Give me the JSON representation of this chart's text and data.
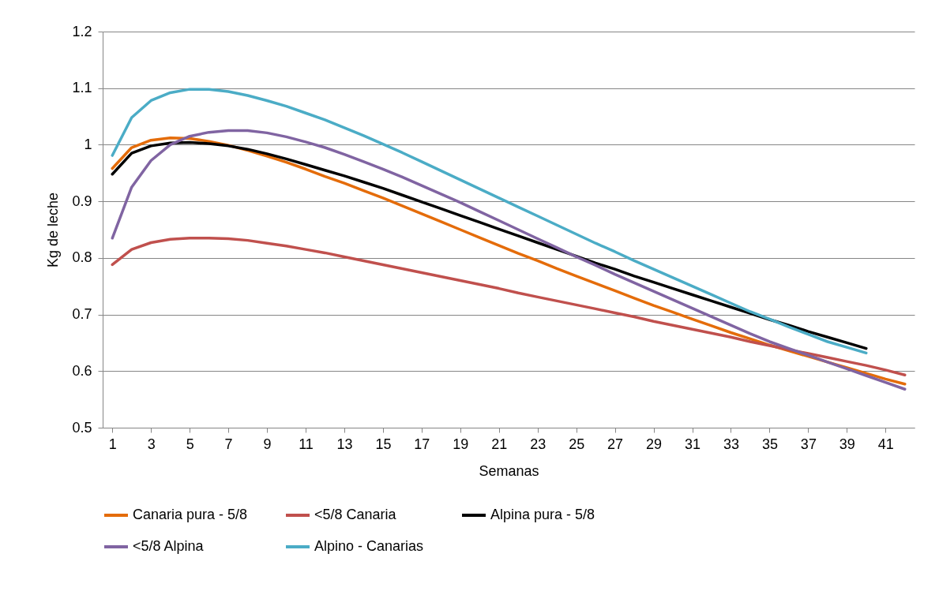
{
  "chart_data": {
    "type": "line",
    "xlabel": "Semanas",
    "ylabel": "Kg de leche",
    "x": [
      1,
      2,
      3,
      4,
      5,
      6,
      7,
      8,
      9,
      10,
      11,
      12,
      13,
      14,
      15,
      16,
      17,
      18,
      19,
      20,
      21,
      22,
      23,
      24,
      25,
      26,
      27,
      28,
      29,
      30,
      31,
      32,
      33,
      34,
      35,
      36,
      37,
      38,
      39,
      40,
      41,
      42
    ],
    "xlim": [
      0.5,
      42.5
    ],
    "xticks": [
      1,
      3,
      5,
      7,
      9,
      11,
      13,
      15,
      17,
      19,
      21,
      23,
      25,
      27,
      29,
      31,
      33,
      35,
      37,
      39,
      41
    ],
    "ylim": [
      0.5,
      1.2
    ],
    "yticks": [
      0.5,
      0.6,
      0.7,
      0.8,
      0.9,
      1,
      1.1,
      1.2
    ],
    "grid": "y",
    "legend": "bottom",
    "marker": "none",
    "line_style": "solid",
    "series": [
      {
        "name": "Canaria pura - 5/8",
        "color": "#e46c0a",
        "values": [
          0.958,
          0.995,
          1.008,
          1.012,
          1.011,
          1.006,
          0.999,
          0.99,
          0.98,
          0.969,
          0.957,
          0.944,
          0.932,
          0.919,
          0.906,
          0.892,
          0.878,
          0.864,
          0.85,
          0.836,
          0.822,
          0.808,
          0.795,
          0.781,
          0.768,
          0.755,
          0.742,
          0.729,
          0.716,
          0.704,
          0.692,
          0.68,
          0.668,
          0.657,
          0.646,
          0.636,
          0.626,
          0.616,
          0.606,
          0.596,
          0.586,
          0.577
        ]
      },
      {
        "name": "<5/8 Canaria",
        "color": "#c0504d",
        "values": [
          0.788,
          0.815,
          0.827,
          0.833,
          0.835,
          0.835,
          0.834,
          0.831,
          0.826,
          0.821,
          0.815,
          0.809,
          0.802,
          0.795,
          0.788,
          0.781,
          0.774,
          0.767,
          0.76,
          0.753,
          0.746,
          0.738,
          0.731,
          0.724,
          0.717,
          0.71,
          0.703,
          0.696,
          0.688,
          0.681,
          0.674,
          0.667,
          0.66,
          0.652,
          0.645,
          0.638,
          0.631,
          0.624,
          0.617,
          0.61,
          0.602,
          0.593
        ]
      },
      {
        "name": "Alpina pura - 5/8",
        "color": "#000000",
        "values": [
          0.948,
          0.985,
          0.998,
          1.003,
          1.004,
          1.002,
          0.998,
          0.992,
          0.984,
          0.975,
          0.965,
          0.955,
          0.945,
          0.934,
          0.923,
          0.911,
          0.899,
          0.887,
          0.875,
          0.863,
          0.851,
          0.839,
          0.827,
          0.815,
          0.803,
          0.791,
          0.78,
          0.768,
          0.757,
          0.746,
          0.735,
          0.724,
          0.713,
          0.702,
          0.691,
          0.681,
          0.67,
          0.66,
          0.65,
          0.64,
          null,
          null
        ]
      },
      {
        "name": "<5/8 Alpina",
        "color": "#8064a2",
        "values": [
          0.835,
          0.925,
          0.972,
          1.0,
          1.015,
          1.022,
          1.025,
          1.025,
          1.021,
          1.014,
          1.005,
          0.995,
          0.983,
          0.97,
          0.957,
          0.943,
          0.928,
          0.913,
          0.898,
          0.882,
          0.866,
          0.85,
          0.834,
          0.818,
          0.802,
          0.787,
          0.771,
          0.756,
          0.741,
          0.726,
          0.711,
          0.696,
          0.681,
          0.666,
          0.652,
          0.64,
          0.628,
          0.616,
          0.604,
          0.592,
          0.58,
          0.568
        ]
      },
      {
        "name": "Alpino - Canarias",
        "color": "#4bacc6",
        "values": [
          0.981,
          1.048,
          1.078,
          1.092,
          1.098,
          1.098,
          1.094,
          1.087,
          1.078,
          1.068,
          1.056,
          1.044,
          1.03,
          1.016,
          1.001,
          0.986,
          0.97,
          0.954,
          0.938,
          0.922,
          0.906,
          0.89,
          0.874,
          0.858,
          0.842,
          0.826,
          0.811,
          0.795,
          0.78,
          0.765,
          0.75,
          0.735,
          0.72,
          0.705,
          0.692,
          0.678,
          0.665,
          0.652,
          0.642,
          0.632,
          null,
          null
        ]
      }
    ]
  }
}
